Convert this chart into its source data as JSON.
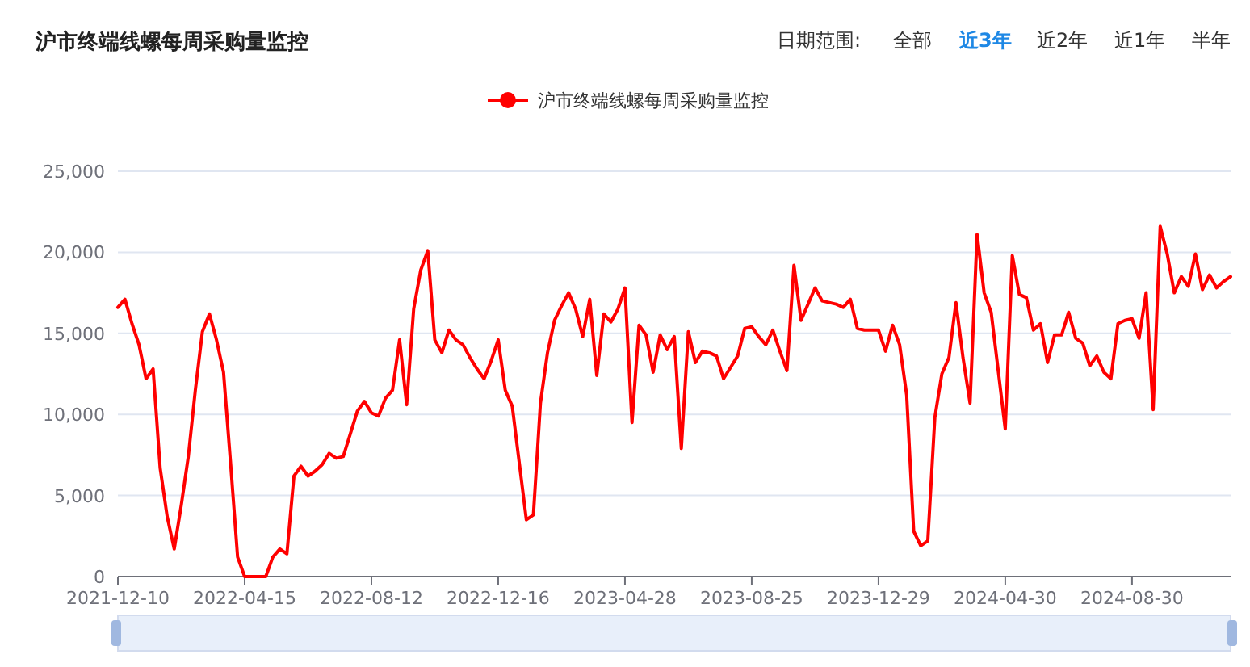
{
  "chart_data": {
    "type": "line",
    "title": "沪市终端线螺每周采购量监控",
    "annotations": [
      "日期范围:",
      "全部",
      "近3年",
      "近2年",
      "近1年",
      "半年"
    ],
    "categories": [
      "2021-12-10",
      null,
      null,
      null,
      null,
      null,
      null,
      null,
      null,
      null,
      null,
      null,
      null,
      null,
      null,
      null,
      null,
      null,
      "2022-04-15",
      null,
      null,
      null,
      null,
      null,
      null,
      null,
      null,
      null,
      null,
      null,
      null,
      null,
      null,
      null,
      null,
      null,
      "2022-08-12",
      null,
      null,
      null,
      null,
      null,
      null,
      null,
      null,
      null,
      null,
      null,
      null,
      null,
      null,
      null,
      null,
      null,
      "2022-12-16",
      null,
      null,
      null,
      null,
      null,
      null,
      null,
      null,
      null,
      null,
      null,
      null,
      null,
      null,
      null,
      null,
      null,
      "2023-04-28",
      null,
      null,
      null,
      null,
      null,
      null,
      null,
      null,
      null,
      null,
      null,
      null,
      null,
      null,
      null,
      null,
      null,
      "2023-08-25",
      null,
      null,
      null,
      null,
      null,
      null,
      null,
      null,
      null,
      null,
      null,
      null,
      null,
      null,
      null,
      null,
      null,
      "2023-12-29",
      null,
      null,
      null,
      null,
      null,
      null,
      null,
      null,
      null,
      null,
      null,
      null,
      null,
      null,
      null,
      null,
      null,
      "2024-04-30",
      null,
      null,
      null,
      null,
      null,
      null,
      null,
      null,
      null,
      null,
      null,
      null,
      null,
      null,
      null,
      null,
      null,
      "2024-08-30",
      null,
      null,
      null,
      null,
      null,
      null,
      null,
      null,
      null,
      null,
      null,
      null,
      null,
      null
    ],
    "series": [
      {
        "name": "沪市终端线螺每周采购量监控",
        "color": "#ff0000",
        "values": [
          16600,
          17100,
          15600,
          14300,
          12200,
          12800,
          6700,
          3700,
          1700,
          4400,
          7400,
          11500,
          15100,
          16200,
          14600,
          12600,
          7000,
          1200,
          0,
          0,
          0,
          0,
          1200,
          1700,
          1400,
          6200,
          6800,
          6200,
          6500,
          6900,
          7600,
          7300,
          7400,
          8800,
          10200,
          10800,
          10100,
          9900,
          11000,
          11500,
          14600,
          10600,
          16500,
          18900,
          20100,
          14600,
          13800,
          15200,
          14600,
          14300,
          13500,
          12800,
          12200,
          13300,
          14600,
          11500,
          10500,
          7000,
          3500,
          3800,
          10700,
          13800,
          15800,
          16700,
          17500,
          16500,
          14800,
          17100,
          12400,
          16200,
          15700,
          16500,
          17800,
          9500,
          15500,
          14900,
          12600,
          14900,
          14000,
          14800,
          7900,
          15100,
          13200,
          13900,
          13800,
          13600,
          12200,
          12900,
          13600,
          15300,
          15400,
          14800,
          14300,
          15200,
          13900,
          12700,
          19200,
          15800,
          16800,
          17800,
          17000,
          16900,
          16800,
          16600,
          17100,
          15300,
          15200,
          15200,
          15200,
          13900,
          15500,
          14300,
          11200,
          2800,
          1900,
          2200,
          9800,
          12500,
          13500,
          16900,
          13500,
          10700,
          21100,
          17500,
          16300,
          12700,
          9100,
          19800,
          17400,
          17200,
          15200,
          15600,
          13200,
          14900,
          14900,
          16300,
          14700,
          14400,
          13000,
          13600,
          12600,
          12200,
          15600,
          15800,
          15900,
          14700,
          17500,
          10300,
          21600,
          19900,
          17500,
          18500,
          17900,
          19900,
          17700,
          18600,
          17800,
          18200,
          18500
        ]
      }
    ],
    "ylim": [
      0,
      25000
    ],
    "yticks": [
      0,
      {
        "value": 5000,
        "label": "5,000"
      },
      {
        "value": 10000,
        "label": "10,000"
      },
      {
        "value": 15000,
        "label": "15,000"
      },
      {
        "value": 20000,
        "label": "20,000"
      },
      {
        "value": 25000,
        "label": "25,000"
      }
    ],
    "grid": "y",
    "legend": "top",
    "line_style": "solid"
  }
}
